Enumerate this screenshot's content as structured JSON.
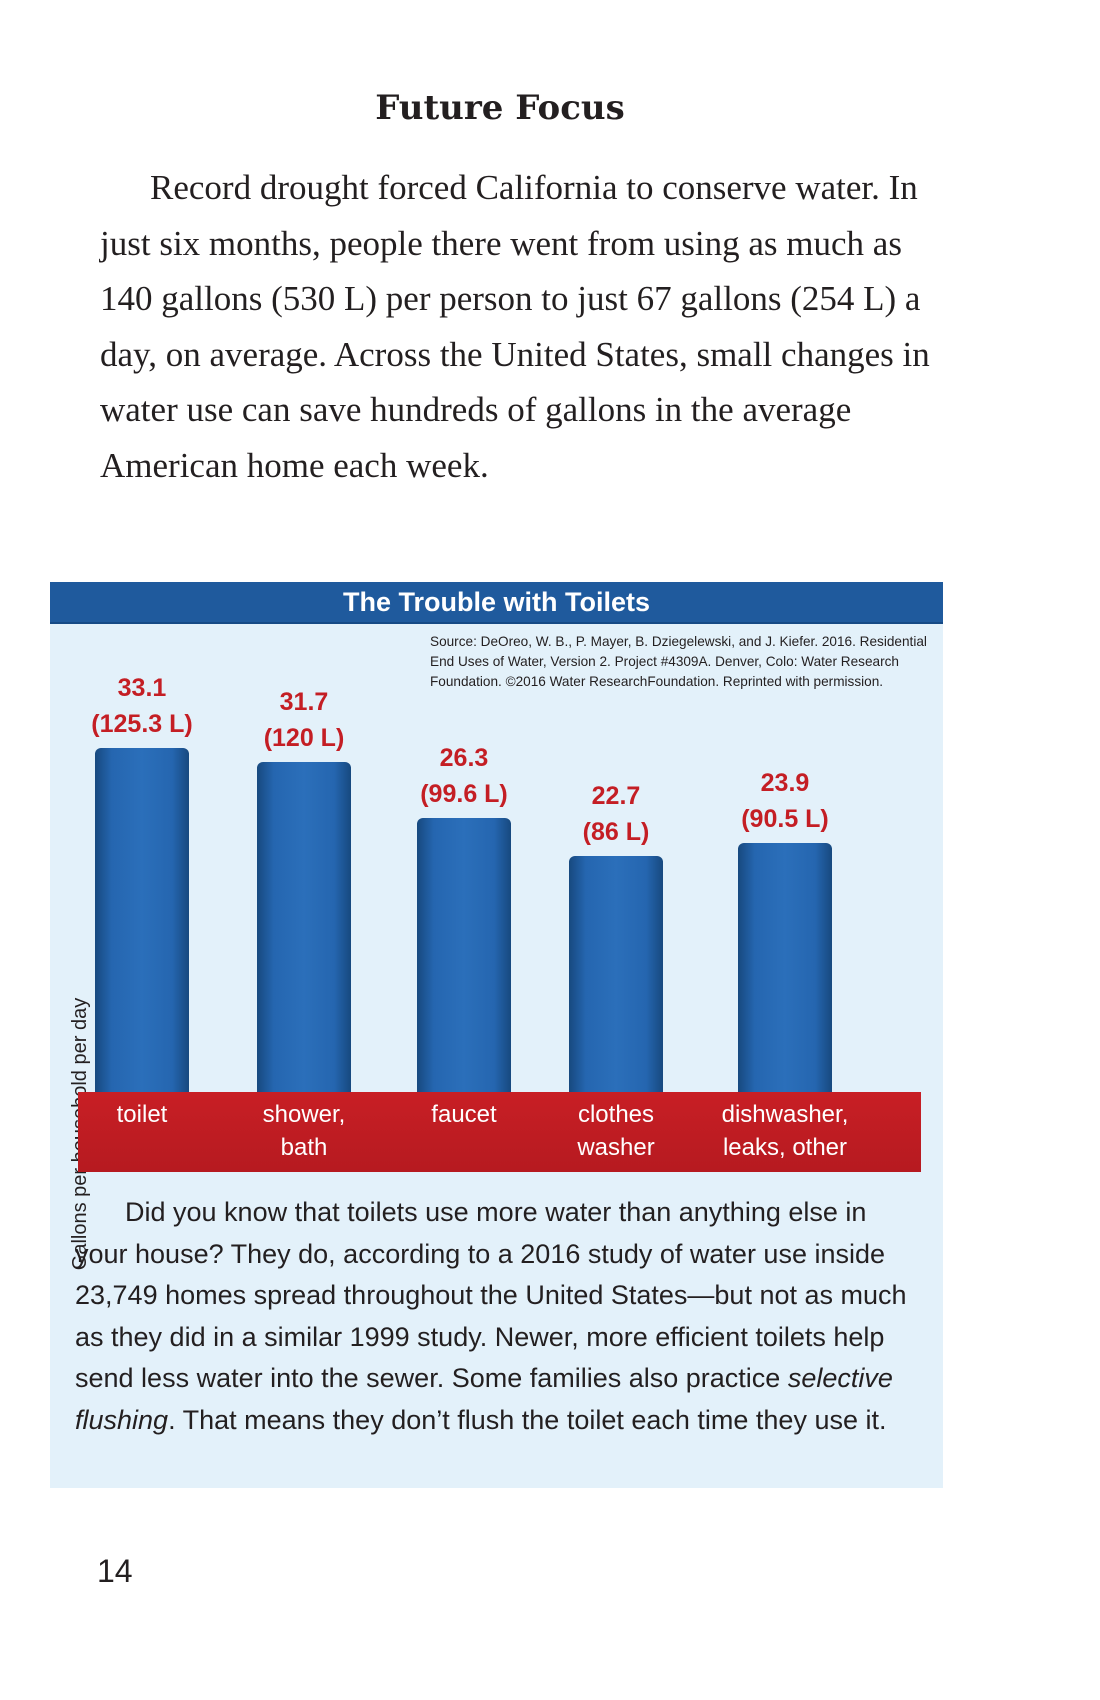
{
  "heading": "Future Focus",
  "intro_paragraph": "Record drought forced California to conserve water. In just six months, people there went from using as much as 140 gallons (530 L) per person to just 67 gallons (254 L) a day, on average. Across the United States, small changes in water use can save hundreds of gallons in the average American home each week.",
  "infobox": {
    "source_note": "Source: DeOreo, W. B., P. Mayer, B. Dziegelewski, and J. Kiefer. 2016. Residential End Uses of Water, Version 2. Project #4309A. Denver, Colo: Water Research Foundation. ©2016 Water ResearchFoundation. Reprinted with permission.",
    "body": {
      "before": "Did you know that toilets use more water than anything else in your house? They do, according to a 2016 study of water use inside 23,749 homes spread throughout the United States—but not as much as they did in a similar 1999 study. Newer, more efficient toilets help send less water into the sewer. Some families also practice ",
      "emphasis": "selective flushing",
      "after": ". That means they don’t flush the toilet each time they use it."
    }
  },
  "chart_data": {
    "type": "bar",
    "title": "The Trouble with Toilets",
    "ylabel": "Gallons per household per day",
    "xlabel": "",
    "categories": [
      {
        "line1": "toilet",
        "line2": ""
      },
      {
        "line1": "shower,",
        "line2": "bath"
      },
      {
        "line1": "faucet",
        "line2": ""
      },
      {
        "line1": "clothes",
        "line2": "washer"
      },
      {
        "line1": "dishwasher,",
        "line2": "leaks, other"
      }
    ],
    "values": [
      33.1,
      31.7,
      26.3,
      22.7,
      23.9
    ],
    "value_labels": [
      {
        "gallons": "33.1",
        "liters": "(125.3 L)"
      },
      {
        "gallons": "31.7",
        "liters": "(120 L)"
      },
      {
        "gallons": "26.3",
        "liters": "(99.6 L)"
      },
      {
        "gallons": "22.7",
        "liters": "(86 L)"
      },
      {
        "gallons": "23.9",
        "liters": "(90.5 L)"
      }
    ],
    "colors": {
      "bar": "#2566b0",
      "band": "#c41e24",
      "title_bar": "#1f5a9d",
      "value_text": "#c41e24"
    }
  },
  "page_number": "14"
}
